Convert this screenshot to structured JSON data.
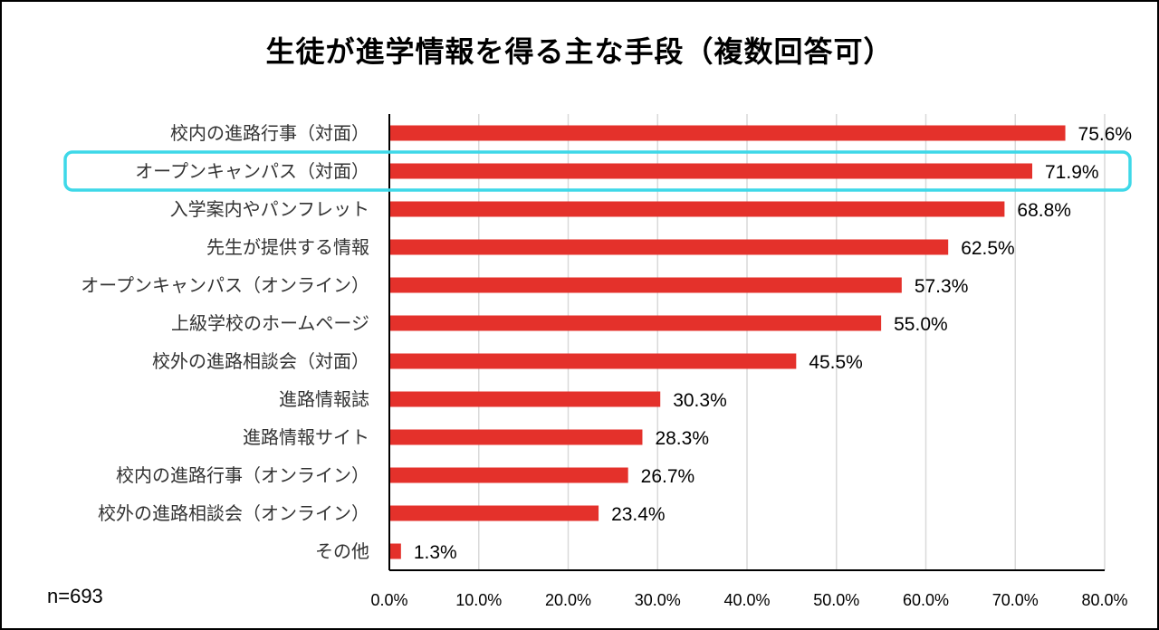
{
  "colors": {
    "bar": "#e4312b",
    "highlight": "#3ed8e8",
    "grid": "#d9d9d9",
    "axis": "#000000"
  },
  "chart_data": {
    "type": "bar",
    "orientation": "horizontal",
    "title": "生徒が進学情報を得る主な手段（複数回答可）",
    "note": "n=693",
    "categories": [
      "校内の進路行事（対面）",
      "オープンキャンパス（対面）",
      "入学案内やパンフレット",
      "先生が提供する情報",
      "オープンキャンパス（オンライン）",
      "上級学校のホームページ",
      "校外の進路相談会（対面）",
      "進路情報誌",
      "進路情報サイト",
      "校内の進路行事（オンライン）",
      "校外の進路相談会（オンライン）",
      "その他"
    ],
    "values": [
      75.6,
      71.9,
      68.8,
      62.5,
      57.3,
      55.0,
      45.5,
      30.3,
      28.3,
      26.7,
      23.4,
      1.3
    ],
    "value_labels": [
      "75.6%",
      "71.9%",
      "68.8%",
      "62.5%",
      "57.3%",
      "55.0%",
      "45.5%",
      "30.3%",
      "28.3%",
      "26.7%",
      "23.4%",
      "1.3%"
    ],
    "xlim": [
      0,
      80
    ],
    "xticks": [
      0,
      10,
      20,
      30,
      40,
      50,
      60,
      70,
      80
    ],
    "xtick_labels": [
      "0.0%",
      "10.0%",
      "20.0%",
      "30.0%",
      "40.0%",
      "50.0%",
      "60.0%",
      "70.0%",
      "80.0%"
    ],
    "highlighted_category": "オープンキャンパス（対面）",
    "grid": true,
    "legend": "none"
  }
}
